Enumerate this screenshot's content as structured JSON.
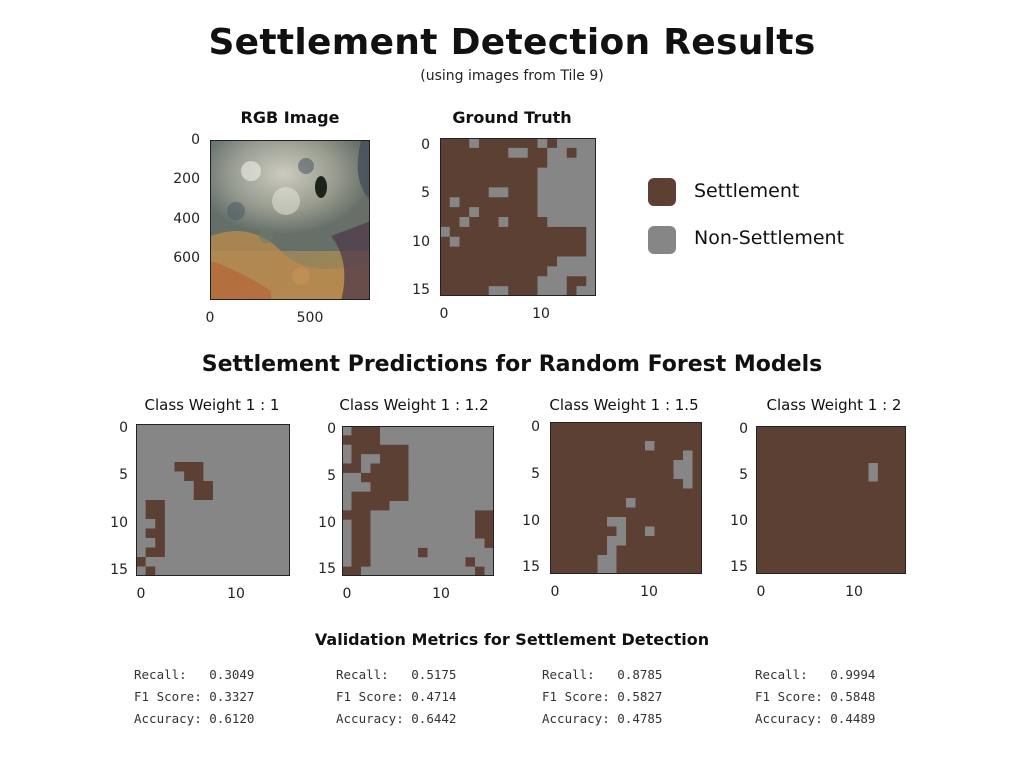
{
  "header": {
    "title": "Settlement Detection Results",
    "subtitle": "(using images from Tile 9)"
  },
  "colors": {
    "settlement": "#5c4033",
    "non_settlement": "#868686"
  },
  "legend": {
    "settlement": "Settlement",
    "non_settlement": "Non-Settlement"
  },
  "rgb_panel": {
    "title": "RGB Image",
    "y_ticks": [
      "0",
      "200",
      "400",
      "600"
    ],
    "x_ticks": [
      "0",
      "500"
    ]
  },
  "gt_panel": {
    "title": "Ground Truth",
    "y_ticks": [
      "0",
      "5",
      "10",
      "15"
    ],
    "x_ticks": [
      "0",
      "10"
    ]
  },
  "predictions_title": "Settlement Predictions for Random Forest Models",
  "metrics_title": "Validation Metrics for Settlement Detection",
  "chart_data": [
    {
      "type": "heatmap",
      "title": "Ground Truth",
      "legend": [
        "Settlement",
        "Non-Settlement"
      ],
      "x_ticks": [
        0,
        10
      ],
      "y_ticks": [
        0,
        5,
        10,
        15
      ],
      "grid": [
        "SSSGSSSSSSGSGGGG",
        "SSSSSSSGGSSGGSGG",
        "SSSSSSSSSSSGGGGG",
        "SSSSSSSSSSGGGGGG",
        "SSSSSSSSSSGGGGGG",
        "SSSSSGGSSSGGGGGG",
        "SGSSSSSSSSGGGGGG",
        "SSSGSSSSSSGGGGGG",
        "SSGSSSGSSSSGGGGG",
        "GSSSSSSSSSSSSSSG",
        "SGSSSSSSSSSSSSSG",
        "SSSSSSSSSSSSSSSG",
        "SSSSSSSSSSSSGGGG",
        "SSSSSSSSSSSGGGGG",
        "SSSSSSSSSSGGGSSG",
        "SSSSSGGSSSGGGSGG"
      ]
    },
    {
      "type": "heatmap",
      "title": "Class Weight 1 : 1",
      "x_ticks": [
        0,
        10
      ],
      "y_ticks": [
        0,
        5,
        10,
        15
      ],
      "grid": [
        "GGGGGGGGGGGGGGGG",
        "GGGGGGGGGGGGGGGG",
        "GGGGGGGGGGGGGGGG",
        "GGGGGGGGGGGGGGGG",
        "GGGGSSSGGGGGGGGG",
        "GGGGGSSGGGGGGGGG",
        "GGGGGGSSGGGGGGGG",
        "GGGGGGSSGGGGGGGG",
        "GSSGGGGGGGGGGGGG",
        "GSSGGGGGGGGGGGGG",
        "GGSGGGGGGGGGGGGG",
        "GSSGGGGGGGGGGGGG",
        "GGSGGGGGGGGGGGGG",
        "GSSGGGGGGGGGGGGG",
        "SGGGGGGGGGGGGGGG",
        "GSGGGGGGGGGGGGGG"
      ],
      "metrics": {
        "Recall": "0.3049",
        "F1 Score": "0.3327",
        "Accuracy": "0.6120"
      }
    },
    {
      "type": "heatmap",
      "title": "Class Weight 1 : 1.2",
      "x_ticks": [
        0,
        10
      ],
      "y_ticks": [
        0,
        5,
        10,
        15
      ],
      "grid": [
        "GSSSGGGGGGGGGGGG",
        "SSSSGGGGGGGGGGGG",
        "GSSSSSSGGGGGGGGG",
        "GSGGSSSGGGGGGGGG",
        "SSGSSSSGGGGGGGGG",
        "GGSSSSSGGGGGGGGG",
        "GGGSSSSGGGGGGGGG",
        "GSSSSSSGGGGGGGGG",
        "GSSSSGGGGGGGGGGG",
        "SSSGGGGGGGGGGGSS",
        "GSSGGGGGGGGGGGSS",
        "GSSGGGGGGGGGGGSS",
        "GSSGGGGGGGGGGGGS",
        "GSSGGGGGSGGGGGGG",
        "GSSGGGGGGGGGGSGG",
        "SSGGGGGGGGGGGGSG"
      ],
      "metrics": {
        "Recall": "0.5175",
        "F1 Score": "0.4714",
        "Accuracy": "0.6442"
      }
    },
    {
      "type": "heatmap",
      "title": "Class Weight 1 : 1.5",
      "x_ticks": [
        0,
        10
      ],
      "y_ticks": [
        0,
        5,
        10,
        15
      ],
      "grid": [
        "SSSSSSSSSSSSSSSS",
        "SSSSSSSSSSSSSSSS",
        "SSSSSSSSSSGSSSSS",
        "SSSSSSSSSSSSSSGS",
        "SSSSSSSSSSSSSGGS",
        "SSSSSSSSSSSSSGGS",
        "SSSSSSSSSSSSSSGS",
        "SSSSSSSSSSSSSSSS",
        "SSSSSSSSGSSSSSSS",
        "SSSSSSSSSSSSSSSS",
        "SSSSSSGGSSSSSSSS",
        "SSSSSSSGSSGSSSSS",
        "SSSSSSGGSSSSSSSS",
        "SSSSSSGSSSSSSSSS",
        "SSSSSGGSSSSSSSSS",
        "SSSSSGGSSSSSSSSS"
      ],
      "metrics": {
        "Recall": "0.8785",
        "F1 Score": "0.5827",
        "Accuracy": "0.4785"
      }
    },
    {
      "type": "heatmap",
      "title": "Class Weight 1 : 2",
      "x_ticks": [
        0,
        10
      ],
      "y_ticks": [
        0,
        5,
        10,
        15
      ],
      "grid": [
        "SSSSSSSSSSSSSSSS",
        "SSSSSSSSSSSSSSSS",
        "SSSSSSSSSSSSSSSS",
        "SSSSSSSSSSSSSSSS",
        "SSSSSSSSSSSSGSSS",
        "SSSSSSSSSSSSGSSS",
        "SSSSSSSSSSSSSSSS",
        "SSSSSSSSSSSSSSSS",
        "SSSSSSSSSSSSSSSS",
        "SSSSSSSSSSSSSSSS",
        "SSSSSSSSSSSSSSSS",
        "SSSSSSSSSSSSSSSS",
        "SSSSSSSSSSSSSSSS",
        "SSSSSSSSSSSSSSSS",
        "SSSSSSSSSSSSSSSS",
        "SSSSSSSSSSSSSSSS"
      ],
      "metrics": {
        "Recall": "0.9994",
        "F1 Score": "0.5848",
        "Accuracy": "0.4489"
      }
    }
  ]
}
